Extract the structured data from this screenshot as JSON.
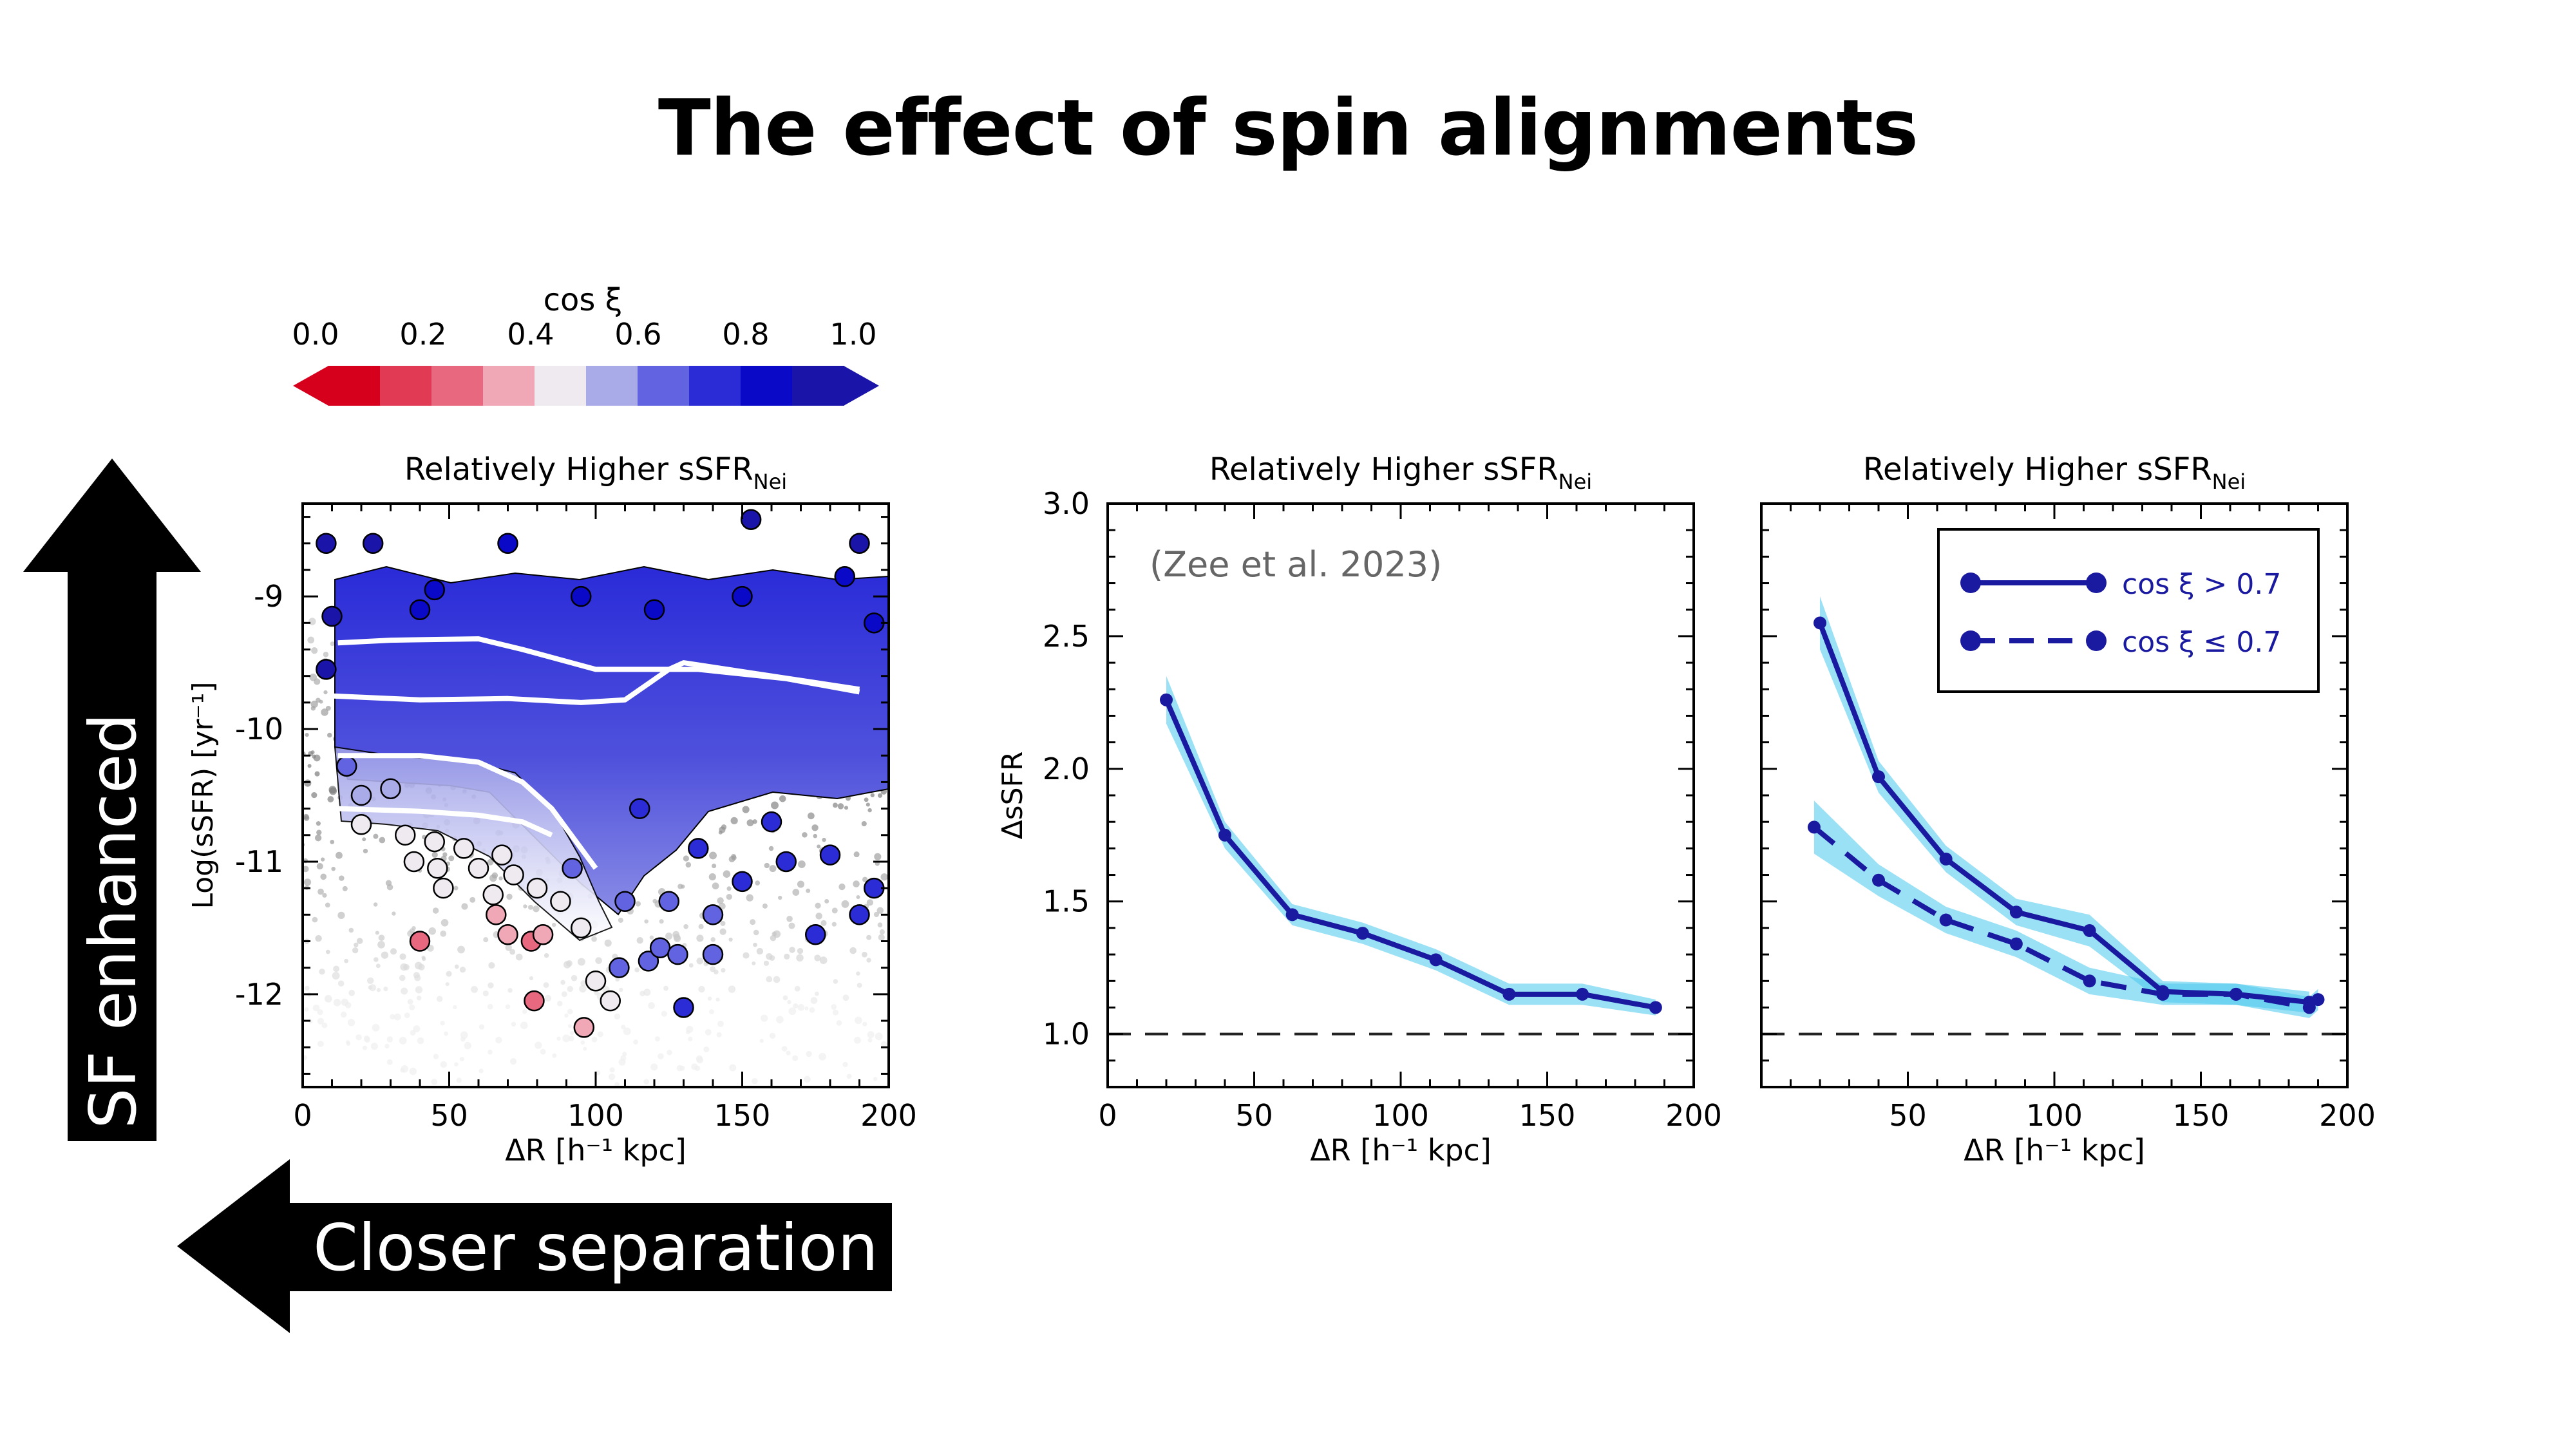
{
  "slide": {
    "title": "The effect of spin alignments",
    "arrow_up_label": "SF enhanced",
    "arrow_left_label": "Closer separation"
  },
  "colorbar": {
    "label": "cos ξ",
    "ticks": [
      "0.0",
      "0.2",
      "0.4",
      "0.6",
      "0.8",
      "1.0"
    ],
    "colors": [
      "#d6001c",
      "#e03a55",
      "#e8697f",
      "#f0a8b6",
      "#eeeaf0",
      "#a9abe8",
      "#6163e0",
      "#2b2cd6",
      "#0a09c7",
      "#1a14a8"
    ]
  },
  "chart_data": [
    {
      "type": "scatter",
      "title_main": "Relatively Higher sSFR",
      "title_sub": "Nei",
      "xlabel": "ΔR [h⁻¹ kpc]",
      "ylabel": "Log(sSFR) [yr⁻¹]",
      "xlim": [
        0,
        200
      ],
      "ylim": [
        -12.7,
        -8.3
      ],
      "xticks": [
        "0",
        "50",
        "100",
        "150",
        "200"
      ],
      "yticks": [
        "-9",
        "-10",
        "-11",
        "-12"
      ],
      "color_by": "cos ξ",
      "white_curves": [
        {
          "x": [
            12,
            30,
            60,
            75,
            100,
            125,
            135,
            165,
            190
          ],
          "y": [
            -9.35,
            -9.33,
            -9.32,
            -9.4,
            -9.55,
            -9.55,
            -9.55,
            -9.62,
            -9.72
          ]
        },
        {
          "x": [
            10,
            40,
            70,
            95,
            110,
            125,
            130,
            160,
            190
          ],
          "y": [
            -9.75,
            -9.78,
            -9.77,
            -9.8,
            -9.78,
            -9.55,
            -9.5,
            -9.6,
            -9.7
          ]
        },
        {
          "x": [
            12,
            40,
            60,
            75,
            85,
            95,
            100
          ],
          "y": [
            -10.2,
            -10.2,
            -10.25,
            -10.4,
            -10.6,
            -10.9,
            -11.05
          ]
        },
        {
          "x": [
            12,
            40,
            60,
            75,
            85
          ],
          "y": [
            -10.6,
            -10.62,
            -10.65,
            -10.7,
            -10.8
          ]
        }
      ],
      "highlighted_points": [
        {
          "x": 8,
          "y": -8.6,
          "c": 0.9
        },
        {
          "x": 24,
          "y": -8.6,
          "c": 0.9
        },
        {
          "x": 70,
          "y": -8.6,
          "c": 0.85
        },
        {
          "x": 153,
          "y": -8.42,
          "c": 0.9
        },
        {
          "x": 190,
          "y": -8.6,
          "c": 0.9
        },
        {
          "x": 185,
          "y": -8.85,
          "c": 0.85
        },
        {
          "x": 150,
          "y": -9.0,
          "c": 0.8
        },
        {
          "x": 45,
          "y": -8.95,
          "c": 0.85
        },
        {
          "x": 40,
          "y": -9.1,
          "c": 0.85
        },
        {
          "x": 10,
          "y": -9.15,
          "c": 0.9
        },
        {
          "x": 95,
          "y": -9.0,
          "c": 0.85
        },
        {
          "x": 120,
          "y": -9.1,
          "c": 0.85
        },
        {
          "x": 8,
          "y": -9.55,
          "c": 0.9
        },
        {
          "x": 195,
          "y": -9.2,
          "c": 0.85
        },
        {
          "x": 15,
          "y": -10.28,
          "c": 0.6
        },
        {
          "x": 20,
          "y": -10.5,
          "c": 0.55
        },
        {
          "x": 30,
          "y": -10.45,
          "c": 0.55
        },
        {
          "x": 20,
          "y": -10.72,
          "c": 0.45
        },
        {
          "x": 35,
          "y": -10.8,
          "c": 0.45
        },
        {
          "x": 45,
          "y": -10.85,
          "c": 0.45
        },
        {
          "x": 55,
          "y": -10.9,
          "c": 0.45
        },
        {
          "x": 38,
          "y": -11.0,
          "c": 0.4
        },
        {
          "x": 46,
          "y": -11.05,
          "c": 0.42
        },
        {
          "x": 60,
          "y": -11.05,
          "c": 0.45
        },
        {
          "x": 68,
          "y": -10.95,
          "c": 0.45
        },
        {
          "x": 48,
          "y": -11.2,
          "c": 0.4
        },
        {
          "x": 65,
          "y": -11.25,
          "c": 0.42
        },
        {
          "x": 72,
          "y": -11.1,
          "c": 0.45
        },
        {
          "x": 80,
          "y": -11.2,
          "c": 0.45
        },
        {
          "x": 92,
          "y": -11.05,
          "c": 0.6
        },
        {
          "x": 88,
          "y": -11.3,
          "c": 0.45
        },
        {
          "x": 95,
          "y": -11.5,
          "c": 0.45
        },
        {
          "x": 66,
          "y": -11.4,
          "c": 0.3
        },
        {
          "x": 70,
          "y": -11.55,
          "c": 0.3
        },
        {
          "x": 40,
          "y": -11.6,
          "c": 0.25
        },
        {
          "x": 78,
          "y": -11.6,
          "c": 0.25
        },
        {
          "x": 82,
          "y": -11.55,
          "c": 0.3
        },
        {
          "x": 79,
          "y": -12.05,
          "c": 0.2
        },
        {
          "x": 100,
          "y": -11.9,
          "c": 0.42
        },
        {
          "x": 96,
          "y": -12.25,
          "c": 0.3
        },
        {
          "x": 105,
          "y": -12.05,
          "c": 0.45
        },
        {
          "x": 108,
          "y": -11.8,
          "c": 0.6
        },
        {
          "x": 118,
          "y": -11.75,
          "c": 0.6
        },
        {
          "x": 122,
          "y": -11.65,
          "c": 0.6
        },
        {
          "x": 128,
          "y": -11.7,
          "c": 0.6
        },
        {
          "x": 140,
          "y": -11.7,
          "c": 0.62
        },
        {
          "x": 130,
          "y": -12.1,
          "c": 0.7
        },
        {
          "x": 110,
          "y": -11.3,
          "c": 0.68
        },
        {
          "x": 125,
          "y": -11.3,
          "c": 0.68
        },
        {
          "x": 140,
          "y": -11.4,
          "c": 0.68
        },
        {
          "x": 175,
          "y": -11.55,
          "c": 0.7
        },
        {
          "x": 135,
          "y": -10.9,
          "c": 0.7
        },
        {
          "x": 150,
          "y": -11.15,
          "c": 0.7
        },
        {
          "x": 165,
          "y": -11.0,
          "c": 0.72
        },
        {
          "x": 180,
          "y": -10.95,
          "c": 0.72
        },
        {
          "x": 195,
          "y": -11.2,
          "c": 0.72
        },
        {
          "x": 190,
          "y": -11.4,
          "c": 0.72
        },
        {
          "x": 115,
          "y": -10.6,
          "c": 0.72
        },
        {
          "x": 160,
          "y": -10.7,
          "c": 0.75
        }
      ]
    },
    {
      "type": "line",
      "title_main": "Relatively Higher sSFR",
      "title_sub": "Nei",
      "annotation": "(Zee et al. 2023)",
      "xlabel": "ΔR [h⁻¹ kpc]",
      "ylabel": "ΔsSFR",
      "xlim": [
        0,
        200
      ],
      "ylim": [
        0.8,
        3.0
      ],
      "xticks": [
        "0",
        "50",
        "100",
        "150",
        "200"
      ],
      "yticks": [
        "1.0",
        "1.5",
        "2.0",
        "2.5",
        "3.0"
      ],
      "reference_line": 1.0,
      "series": [
        {
          "x": [
            20,
            40,
            63,
            87,
            112,
            137,
            162,
            187
          ],
          "y": [
            2.26,
            1.75,
            1.45,
            1.38,
            1.28,
            1.15,
            1.15,
            1.1
          ],
          "err": [
            0.09,
            0.05,
            0.04,
            0.04,
            0.04,
            0.04,
            0.04,
            0.03
          ],
          "style": "solid"
        }
      ]
    },
    {
      "type": "line",
      "title_main": "Relatively Higher sSFR",
      "title_sub": "Nei",
      "xlabel": "ΔR [h⁻¹ kpc]",
      "ylabel": "",
      "xlim": [
        0,
        200
      ],
      "ylim": [
        0.8,
        3.0
      ],
      "xticks": [
        "50",
        "100",
        "150",
        "200"
      ],
      "yticks": [],
      "reference_line": 1.0,
      "legend": "top-right",
      "series": [
        {
          "name": "cos ξ > 0.7",
          "x": [
            20,
            40,
            63,
            87,
            112,
            137,
            162,
            187
          ],
          "y": [
            2.55,
            1.97,
            1.66,
            1.46,
            1.39,
            1.16,
            1.15,
            1.12
          ],
          "err": [
            0.1,
            0.06,
            0.05,
            0.05,
            0.06,
            0.04,
            0.04,
            0.04
          ],
          "style": "solid"
        },
        {
          "name": "cos ξ ≤ 0.7",
          "x": [
            18,
            40,
            63,
            87,
            112,
            137,
            162,
            187,
            190
          ],
          "y": [
            1.78,
            1.58,
            1.43,
            1.34,
            1.2,
            1.15,
            1.15,
            1.1,
            1.13
          ],
          "err": [
            0.1,
            0.06,
            0.05,
            0.05,
            0.05,
            0.04,
            0.04,
            0.04,
            0.04
          ],
          "style": "dashed"
        }
      ]
    }
  ]
}
